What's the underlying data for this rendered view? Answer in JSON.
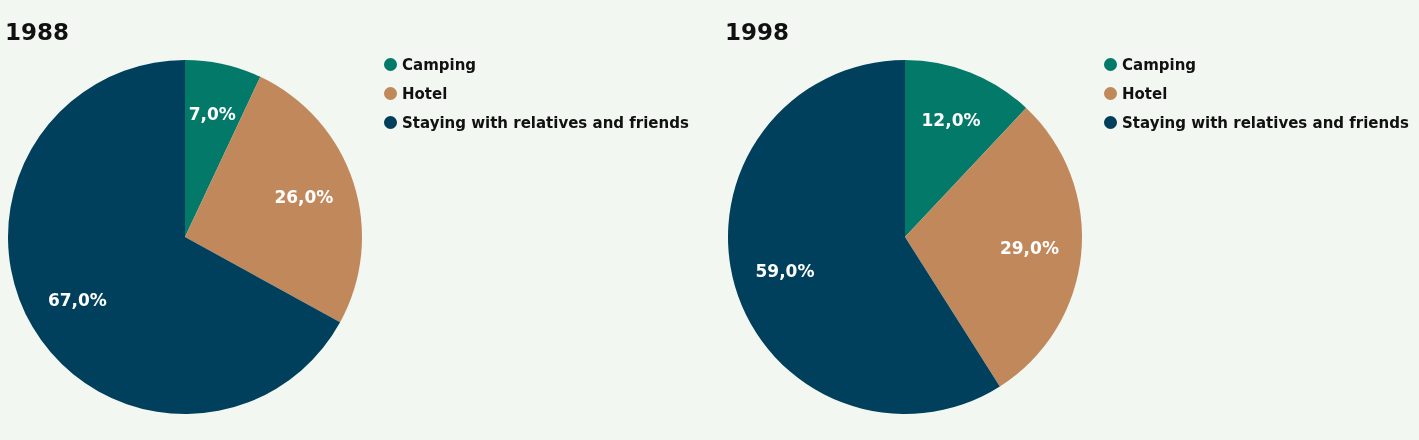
{
  "chart_data": [
    {
      "type": "pie",
      "title": "1988",
      "categories": [
        "Camping",
        "Hotel",
        "Staying with relatives and friends"
      ],
      "values": [
        7,
        26,
        67
      ],
      "colors": [
        "#03796a",
        "#c1885c",
        "#01405c"
      ],
      "value_labels": [
        "7,0%",
        "26,0%",
        "67,0%"
      ],
      "legend": "right"
    },
    {
      "type": "pie",
      "title": "1998",
      "categories": [
        "Camping",
        "Hotel",
        "Staying with relatives and friends"
      ],
      "values": [
        12,
        29,
        59
      ],
      "colors": [
        "#03796a",
        "#c1885c",
        "#01405c"
      ],
      "value_labels": [
        "12,0%",
        "29,0%",
        "59,0%"
      ],
      "legend": "right"
    }
  ]
}
